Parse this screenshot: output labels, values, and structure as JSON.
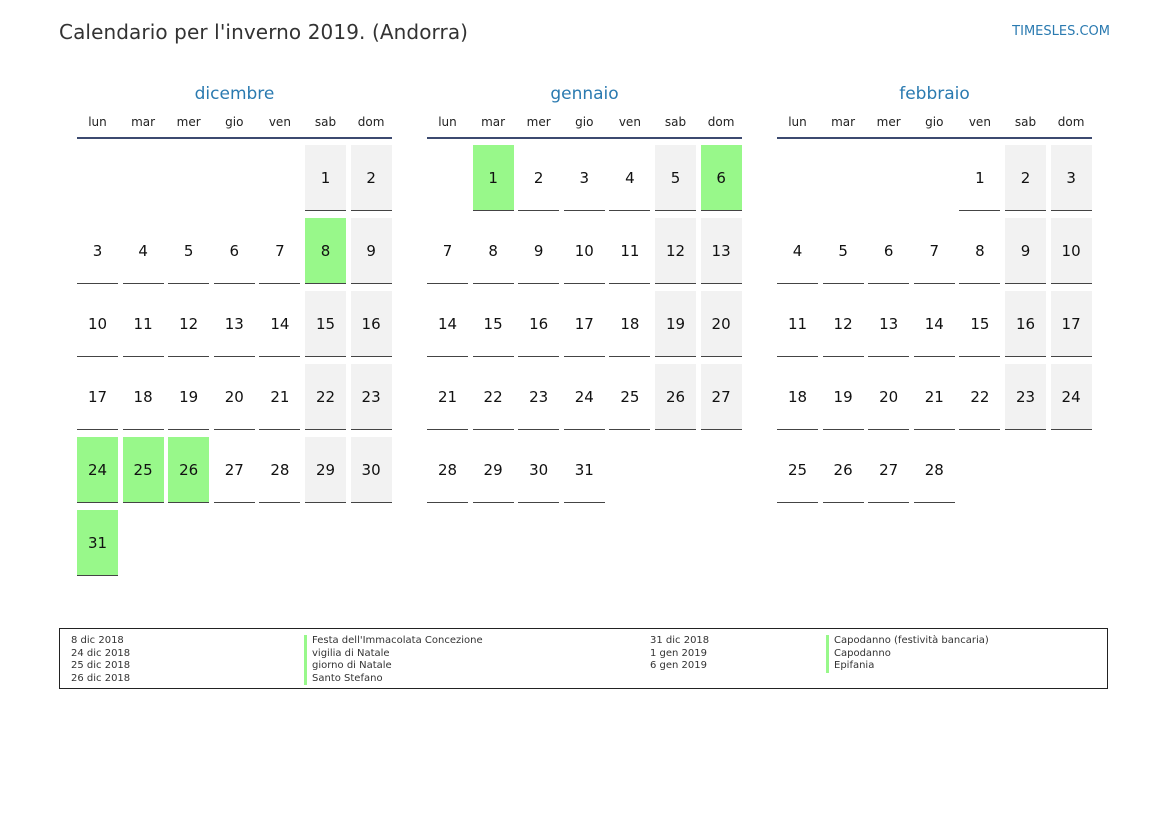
{
  "header": {
    "title": "Calendario per l'inverno 2019. (Andorra)",
    "site": "TIMESLES.COM"
  },
  "weekdays": [
    "lun",
    "mar",
    "mer",
    "gio",
    "ven",
    "sab",
    "dom"
  ],
  "months": [
    {
      "name": "dicembre",
      "start_offset": 5,
      "days": 31,
      "holidays": [
        8,
        24,
        25,
        26,
        31
      ]
    },
    {
      "name": "gennaio",
      "start_offset": 1,
      "days": 31,
      "holidays": [
        1,
        6
      ]
    },
    {
      "name": "febbraio",
      "start_offset": 4,
      "days": 28,
      "holidays": []
    }
  ],
  "legend": {
    "left": [
      {
        "date": "8 dic 2018",
        "name": "Festa dell'Immacolata Concezione"
      },
      {
        "date": "24 dic 2018",
        "name": "vigilia di Natale"
      },
      {
        "date": "25 dic 2018",
        "name": "giorno di Natale"
      },
      {
        "date": "26 dic 2018",
        "name": "Santo Stefano"
      }
    ],
    "right": [
      {
        "date": "31 dic 2018",
        "name": "Capodanno (festività bancaria)"
      },
      {
        "date": "1 gen 2019",
        "name": "Capodanno"
      },
      {
        "date": "6 gen 2019",
        "name": "Epifania"
      }
    ]
  },
  "colors": {
    "holiday": "#98f88a",
    "weekend": "#f2f2f2",
    "accent": "#2a7ab0"
  }
}
